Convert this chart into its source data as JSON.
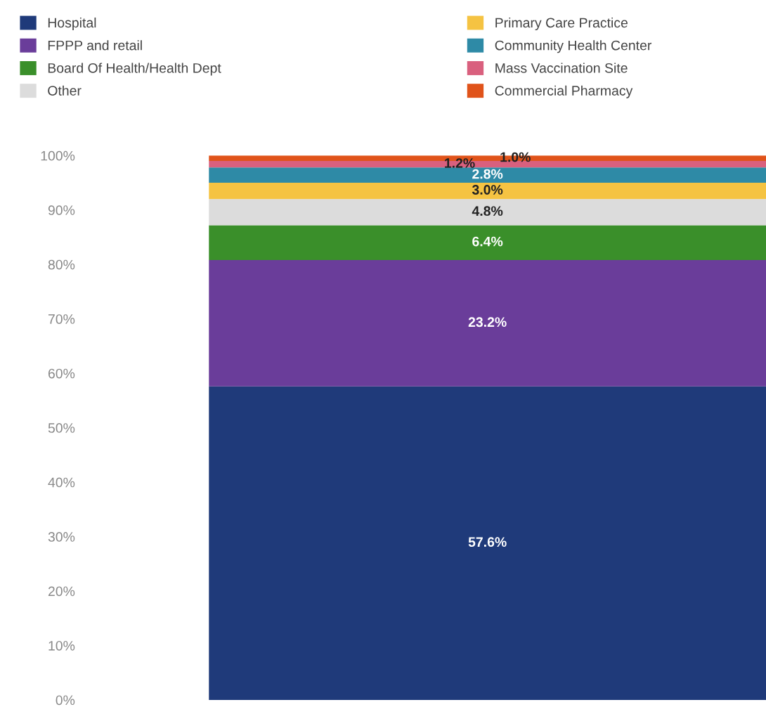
{
  "chart_data": {
    "type": "bar",
    "stacked": true,
    "categories": [
      null
    ],
    "series": [
      {
        "name": "Hospital",
        "color": "#1f3a7a",
        "values": [
          57.6
        ],
        "value_labels": [
          "57.6%"
        ]
      },
      {
        "name": "FPPP and retail",
        "color": "#6a3d9a",
        "values": [
          23.2
        ],
        "value_labels": [
          "23.2%"
        ]
      },
      {
        "name": "Board Of Health/Health Dept",
        "color": "#3a8f2a",
        "values": [
          6.4
        ],
        "value_labels": [
          "6.4%"
        ]
      },
      {
        "name": "Other",
        "color": "#dcdcdc",
        "values": [
          4.8
        ],
        "value_labels": [
          "4.8%"
        ]
      },
      {
        "name": "Primary Care Practice",
        "color": "#f5c342",
        "values": [
          3.0
        ],
        "value_labels": [
          "3.0%"
        ]
      },
      {
        "name": "Community Health Center",
        "color": "#2e8aa6",
        "values": [
          2.8
        ],
        "value_labels": [
          "2.8%"
        ]
      },
      {
        "name": "Mass Vaccination Site",
        "color": "#d9607e",
        "values": [
          1.2
        ],
        "value_labels": [
          "1.2%"
        ]
      },
      {
        "name": "Commercial Pharmacy",
        "color": "#e0531a",
        "values": [
          1.0
        ],
        "value_labels": [
          "1.0%"
        ]
      }
    ],
    "ylim": [
      0,
      100
    ],
    "yticks": [
      {
        "value": 0,
        "label": "0%"
      },
      {
        "value": 10,
        "label": "10%"
      },
      {
        "value": 20,
        "label": "20%"
      },
      {
        "value": 30,
        "label": "30%"
      },
      {
        "value": 40,
        "label": "40%"
      },
      {
        "value": 50,
        "label": "50%"
      },
      {
        "value": 60,
        "label": "60%"
      },
      {
        "value": 70,
        "label": "70%"
      },
      {
        "value": 80,
        "label": "80%"
      },
      {
        "value": 90,
        "label": "90%"
      },
      {
        "value": 100,
        "label": "100%"
      }
    ],
    "grid": false,
    "legend": "top",
    "tick_labels": "y"
  }
}
